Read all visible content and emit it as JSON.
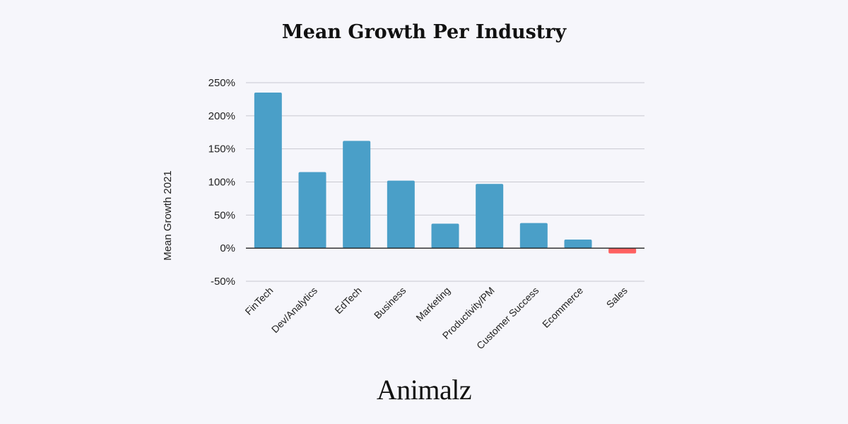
{
  "chart_data": {
    "type": "bar",
    "title": "Mean Growth Per Industry",
    "xlabel": "",
    "ylabel": "Mean Growth 2021",
    "categories": [
      "FinTech",
      "Dev/Analytics",
      "EdTech",
      "Business",
      "Marketing",
      "Productivity/PM",
      "Customer Success",
      "Ecommerce",
      "Sales"
    ],
    "values": [
      235,
      115,
      162,
      102,
      37,
      97,
      38,
      13,
      -8
    ],
    "unit": "%",
    "ylim": [
      -50,
      250
    ],
    "yticks": [
      250,
      200,
      150,
      100,
      50,
      0,
      -50
    ],
    "ytick_labels": [
      "250%",
      "200%",
      "150%",
      "100%",
      "50%",
      "0%",
      "-50%"
    ],
    "grid": true,
    "colors": {
      "positive": "#4a9fc8",
      "negative": "#ff6060",
      "grid": "#c8c8d0",
      "zero_line": "#222222"
    }
  },
  "branding": {
    "logo_text": "Animalz"
  }
}
